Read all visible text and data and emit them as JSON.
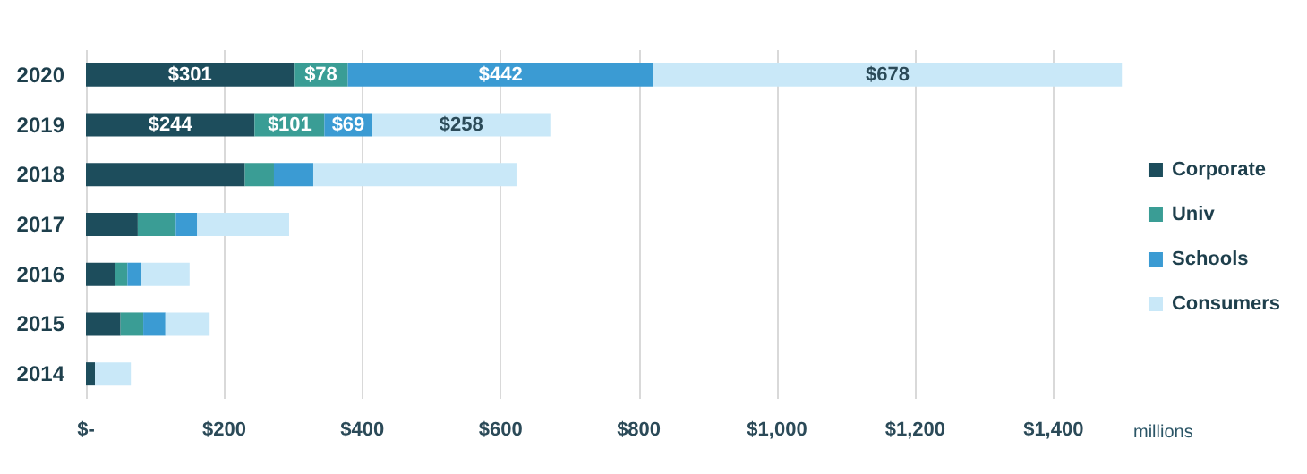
{
  "chart_data": {
    "type": "bar",
    "orientation": "horizontal",
    "stacked": true,
    "categories": [
      "2020",
      "2019",
      "2018",
      "2017",
      "2016",
      "2015",
      "2014"
    ],
    "series": [
      {
        "name": "Corporate",
        "color": "#1d4d5c",
        "values": [
          301,
          244,
          230,
          75,
          42,
          50,
          13
        ],
        "value_labels": [
          "$301",
          "$244",
          null,
          null,
          null,
          null,
          null
        ]
      },
      {
        "name": "Univ",
        "color": "#3a9d95",
        "values": [
          78,
          101,
          42,
          55,
          18,
          33,
          0
        ],
        "value_labels": [
          "$78",
          "$101",
          null,
          null,
          null,
          null,
          null
        ]
      },
      {
        "name": "Schools",
        "color": "#3b9bd3",
        "values": [
          442,
          69,
          57,
          31,
          20,
          32,
          0
        ],
        "value_labels": [
          "$442",
          "$69",
          null,
          null,
          null,
          null,
          null
        ]
      },
      {
        "name": "Consumers",
        "color": "#c9e8f8",
        "values": [
          678,
          258,
          294,
          133,
          70,
          64,
          52
        ],
        "value_labels": [
          "$678",
          "$258",
          null,
          null,
          null,
          null,
          null
        ]
      }
    ],
    "xlim": [
      0,
      1500
    ],
    "xticks": [
      {
        "value": 0,
        "label": "$-"
      },
      {
        "value": 200,
        "label": "$200"
      },
      {
        "value": 400,
        "label": "$400"
      },
      {
        "value": 600,
        "label": "$600"
      },
      {
        "value": 800,
        "label": "$800"
      },
      {
        "value": 1000,
        "label": "$1,000"
      },
      {
        "value": 1200,
        "label": "$1,200"
      },
      {
        "value": 1400,
        "label": "$1,400"
      }
    ],
    "xlabel": "millions",
    "grid": "x",
    "legend": "right"
  }
}
